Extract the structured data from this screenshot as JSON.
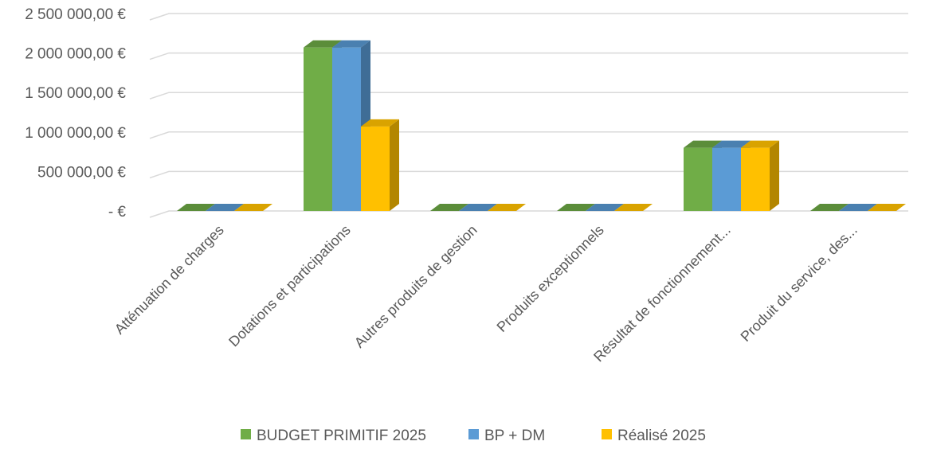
{
  "chart_data": {
    "type": "bar",
    "title": "",
    "xlabel": "",
    "ylabel": "",
    "ylim": [
      0,
      2500000
    ],
    "y_ticks": [
      {
        "value": 0,
        "label": "-  €"
      },
      {
        "value": 500000,
        "label": "500 000,00 €"
      },
      {
        "value": 1000000,
        "label": "1 000 000,00 €"
      },
      {
        "value": 1500000,
        "label": "1 500 000,00 €"
      },
      {
        "value": 2000000,
        "label": "2 000 000,00 €"
      },
      {
        "value": 2500000,
        "label": "2 500 000,00 €"
      }
    ],
    "grid": true,
    "three_d": true,
    "legend_position": "bottom",
    "categories": [
      "Atténuation de charges",
      "Dotations et participations",
      "Autres produits de gestion",
      "Produits exceptionnels",
      "Résultat de fonctionnement...",
      "Produit du service, des..."
    ],
    "series": [
      {
        "name": "BUDGET PRIMITIF 2025",
        "color": "#70AD47",
        "side_color": "#4E7932",
        "top_color": "#5B8D3A",
        "values": [
          0,
          2070000,
          0,
          0,
          800000,
          0
        ]
      },
      {
        "name": "BP + DM",
        "color": "#5B9BD5",
        "side_color": "#3F6D96",
        "top_color": "#4A80B0",
        "values": [
          0,
          2070000,
          0,
          0,
          800000,
          0
        ]
      },
      {
        "name": "Réalisé 2025",
        "color": "#FFC000",
        "side_color": "#B38600",
        "top_color": "#D9A300",
        "values": [
          0,
          1070000,
          0,
          0,
          800000,
          0
        ]
      }
    ]
  }
}
